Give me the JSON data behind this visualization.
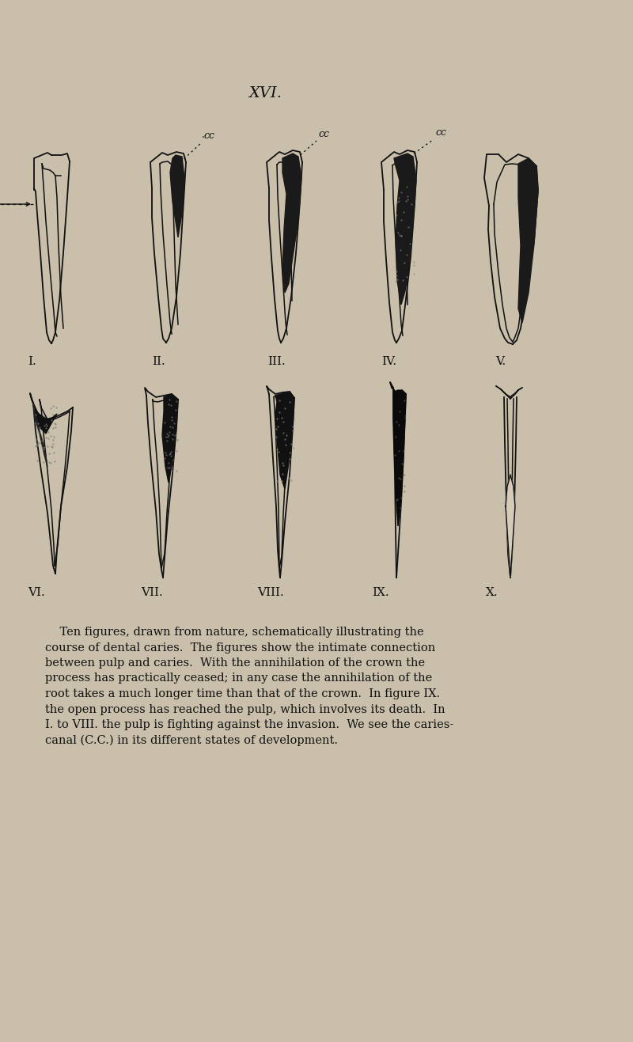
{
  "background_color": "#c9bfaa",
  "title": "XVI.",
  "text_color": "#111111",
  "caption_lines": [
    "    Ten figures, drawn from nature, schematically illustrating the",
    "course of dental caries.  The figures show the intimate connection",
    "between pulp and caries.  With the annihilation of the crown the",
    "process has practically ceased; in any case the annihilation of the",
    "root takes a much longer time than that of the crown.  In figure IX.",
    "the open process has reached the pulp, which involves its death.  In",
    "I. to VIII. the pulp is fighting against the invasion.  We see the caries-",
    "canal (C.C.) in its different states of development."
  ],
  "row1_labels": [
    "I.",
    "II.",
    "III.",
    "IV.",
    "V."
  ],
  "row2_labels": [
    "VI.",
    "VII.",
    "VIII.",
    "IX.",
    "X."
  ]
}
